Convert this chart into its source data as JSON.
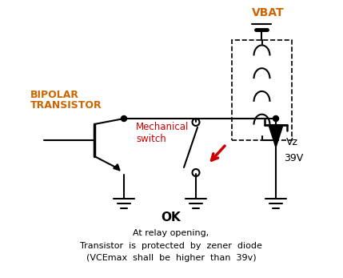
{
  "title": "OK",
  "subtitle_line1": "At relay opening,",
  "subtitle_line2": "Transistor  is  protected  by  zener  diode",
  "subtitle_line3": "(VCEmax  shall  be  higher  than  39v)",
  "vbat_label": "VBAT",
  "bipolar_label1": "BIPOLAR",
  "bipolar_label2": "TRANSISTOR",
  "mechanical_label1": "Mechanical",
  "mechanical_label2": "switch",
  "vz_label": "Vz",
  "v39_label": "39V",
  "bg_color": "#ffffff",
  "line_color": "#000000",
  "orange_color": "#cc6600",
  "red_color": "#cc0000",
  "figsize": [
    4.29,
    3.47
  ],
  "dpi": 100
}
